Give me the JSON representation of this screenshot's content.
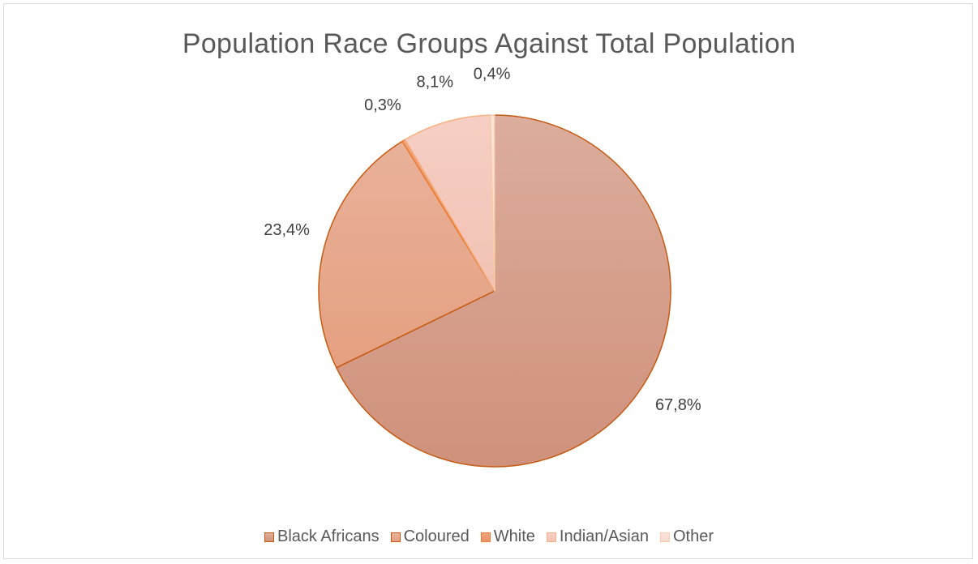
{
  "chart_data": {
    "type": "pie",
    "title": "Population Race Groups Against Total Population",
    "categories": [
      "Black Africans",
      "Coloured",
      "White",
      "Indian/Asian",
      "Other"
    ],
    "values": [
      67.8,
      23.4,
      0.3,
      8.1,
      0.4
    ],
    "labels": [
      "67,8%",
      "23,4%",
      "0,3%",
      "8,1%",
      "0,4%"
    ],
    "legend_position": "bottom",
    "colors": {
      "fill_top": [
        "#dcad9c",
        "#e9b19a",
        "#f0a27a",
        "#f6cfc4",
        "#fbe3dc"
      ],
      "fill_bottom": [
        "#cf917c",
        "#e5a080",
        "#ec9266",
        "#f2c2b4",
        "#f7d9d0"
      ],
      "stroke": [
        "#c55a11",
        "#c55a11",
        "#ed7d31",
        "#f4b183",
        "#f8cbad"
      ],
      "label_text": "#404040"
    }
  }
}
